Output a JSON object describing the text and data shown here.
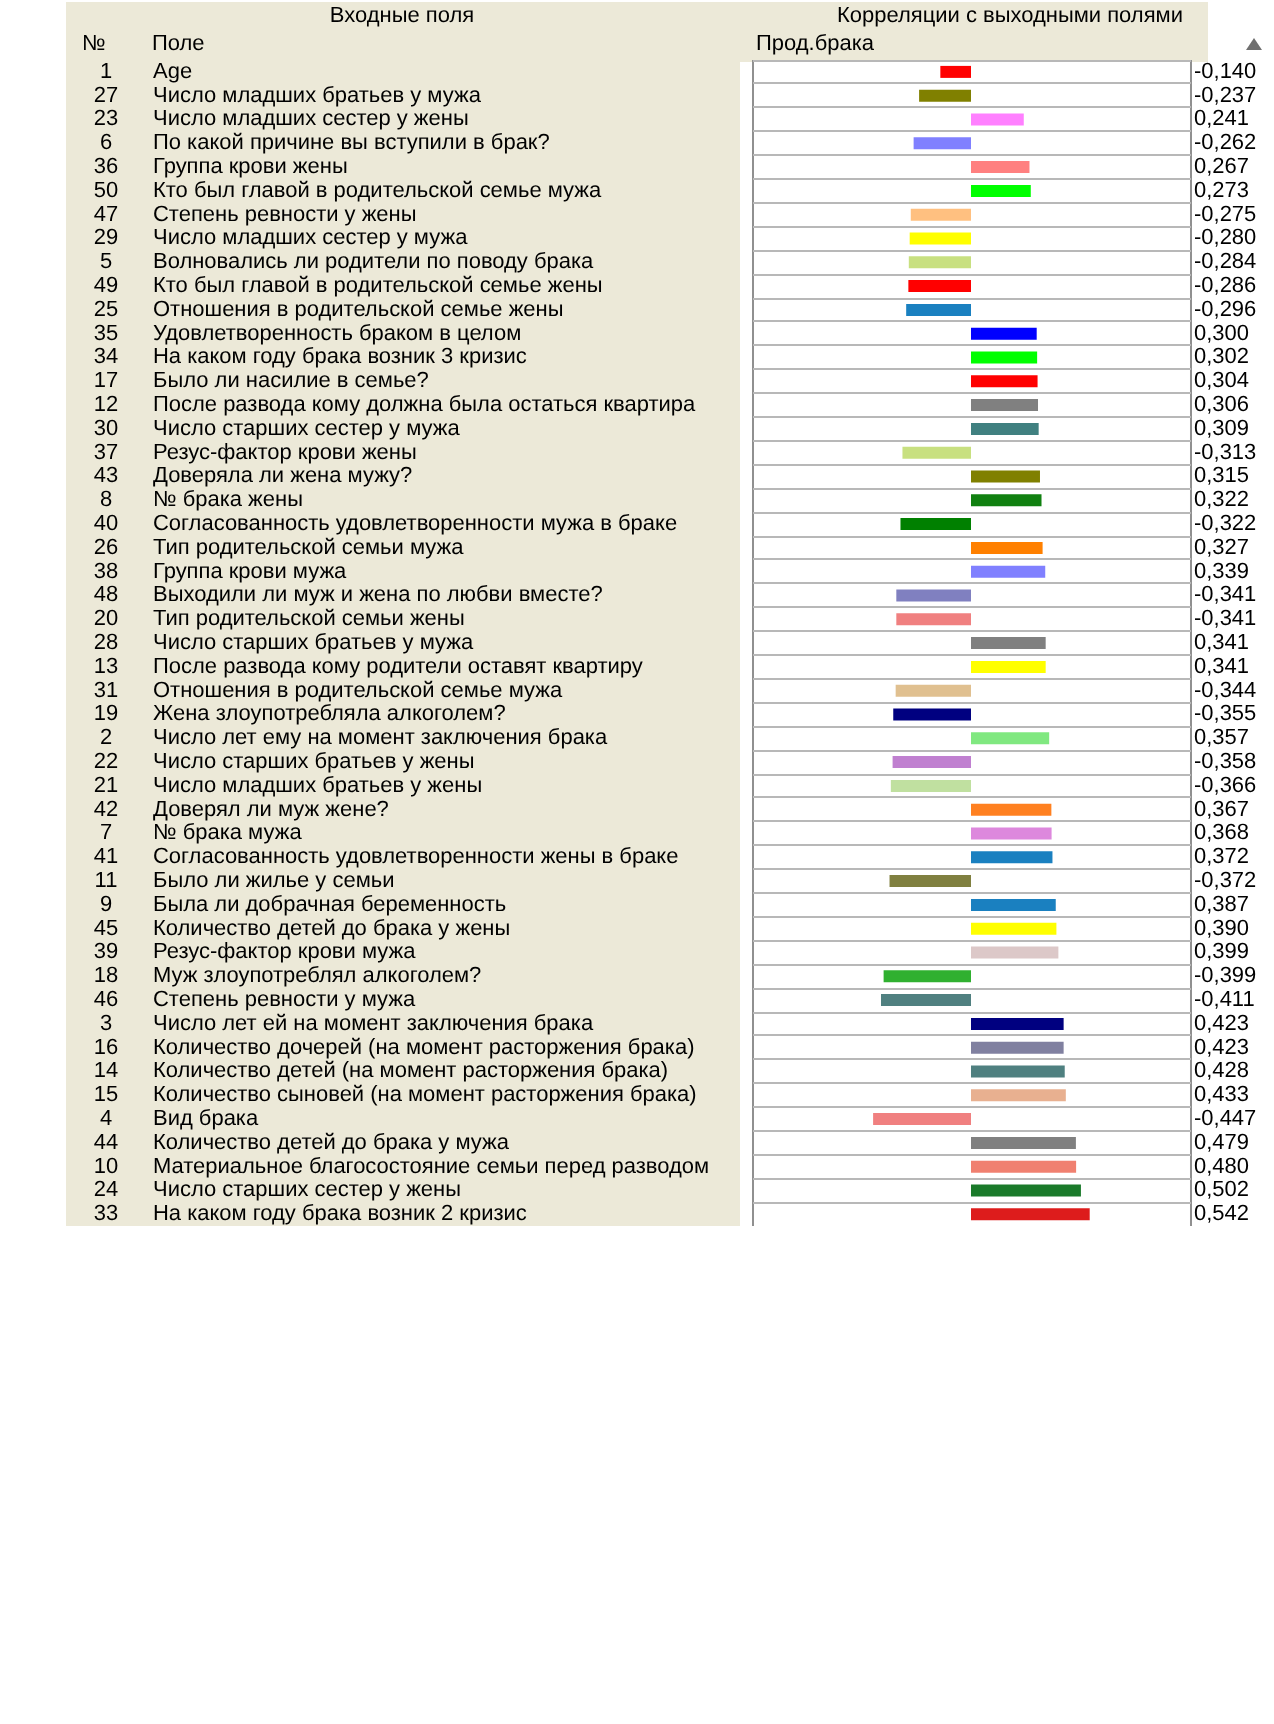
{
  "chart_data": {
    "type": "bar",
    "orientation": "horizontal",
    "title": "Корреляции с выходными полями",
    "ylabel": "Поле",
    "xlabel": "Прод.брака",
    "categories": [
      "Age",
      "Число младших братьев у мужа",
      "Число младших сестер у жены",
      "По какой причине вы вступили в брак?",
      "Группа крови жены",
      "Кто был главой в родительской семье мужа",
      "Степень ревности у жены",
      "Число младших сестер у мужа",
      "Волновались ли родители по поводу брака",
      "Кто был главой в родительской семье жены",
      "Отношения в родительской семье жены",
      "Удовлетворенность браком в целом",
      "На каком году брака возник 3 кризис",
      "Было ли насилие в семье?",
      "После развода кому должна была остаться квартира",
      "Число старших сестер у мужа",
      "Резус-фактор крови жены",
      "Доверяла ли жена мужу?",
      "№ брака жены",
      "Согласованность удовлетворенности мужа в браке",
      "Тип родительской семьи мужа",
      "Группа крови мужа",
      "Выходили ли муж и жена по любви вместе?",
      "Тип родительской семьи жены",
      "Число старших братьев у мужа",
      "После развода кому родители оставят квартиру",
      "Отношения в родительской семье мужа",
      "Жена злоупотребляла алкоголем?",
      "Число лет ему на момент заключения брака",
      "Число старших братьев у жены",
      "Число младших братьев у жены",
      "Доверял ли муж жене?",
      "№ брака мужа",
      "Согласованность удовлетворенности жены в браке",
      "Было ли жилье у семьи",
      "Была ли добрачная беременность",
      "Количество детей до брака у жены",
      "Резус-фактор крови мужа",
      "Муж злоупотреблял алкоголем?",
      "Степень ревности у мужа",
      "Число лет ей на момент заключения брака",
      "Количество дочерей (на момент расторжения брака)",
      "Количество детей (на момент расторжения брака)",
      "Количество сыновей (на момент расторжения брака)",
      "Вид брака",
      "Количество детей до брака у мужа",
      "Материальное благосостояние семьи перед разводом",
      "Число старших сестер у жены",
      "На каком году брака возник 2 кризис"
    ],
    "values": [
      -0.14,
      -0.237,
      0.241,
      -0.262,
      0.267,
      0.273,
      -0.275,
      -0.28,
      -0.284,
      -0.286,
      -0.296,
      0.3,
      0.302,
      0.304,
      0.306,
      0.309,
      -0.313,
      0.315,
      0.322,
      -0.322,
      0.327,
      0.339,
      -0.341,
      -0.341,
      0.341,
      0.341,
      -0.344,
      -0.355,
      0.357,
      -0.358,
      -0.366,
      0.367,
      0.368,
      0.372,
      -0.372,
      0.387,
      0.39,
      0.399,
      -0.399,
      -0.411,
      0.423,
      0.423,
      0.428,
      0.433,
      -0.447,
      0.479,
      0.48,
      0.502,
      0.542
    ],
    "colors": [
      "#ff0000",
      "#808000",
      "#ff80ff",
      "#8080ff",
      "#ff8080",
      "#00ff00",
      "#ffc080",
      "#ffff00",
      "#c8e080",
      "#ff0000",
      "#1a80c0",
      "#0000ff",
      "#00ff00",
      "#ff0000",
      "#808080",
      "#408080",
      "#c8e080",
      "#808000",
      "#108010",
      "#008000",
      "#ff8000",
      "#8080ff",
      "#8080c0",
      "#f08080",
      "#808080",
      "#ffff00",
      "#e0c090",
      "#000080",
      "#80e880",
      "#c080d0",
      "#c0e0a0",
      "#ff8020",
      "#dd88dd",
      "#1a80c0",
      "#808040",
      "#1a80c0",
      "#ffff00",
      "#dcc8c8",
      "#30b030",
      "#508080",
      "#000080",
      "#8080a0",
      "#4f8080",
      "#e8b090",
      "#f08080",
      "#808080",
      "#f08070",
      "#1a7a2a",
      "#dd1c1c"
    ],
    "xlim": [
      -1,
      1
    ],
    "grid": "y",
    "tick_labels": "y",
    "value_labels": [
      "-0,140",
      "-0,237",
      "0,241",
      "-0,262",
      "0,267",
      "0,273",
      "-0,275",
      "-0,280",
      "-0,284",
      "-0,286",
      "-0,296",
      "0,300",
      "0,302",
      "0,304",
      "0,306",
      "0,309",
      "-0,313",
      "0,315",
      "0,322",
      "-0,322",
      "0,327",
      "0,339",
      "-0,341",
      "-0,341",
      "0,341",
      "0,341",
      "-0,344",
      "-0,355",
      "0,357",
      "-0,358",
      "-0,366",
      "0,367",
      "0,368",
      "0,372",
      "-0,372",
      "0,387",
      "0,390",
      "0,399",
      "-0,399",
      "-0,411",
      "0,423",
      "0,423",
      "0,428",
      "0,433",
      "-0,447",
      "0,479",
      "0,480",
      "0,502",
      "0,542"
    ],
    "annotations": [
      "Входные поля",
      "№",
      "1",
      "27",
      "23",
      "6",
      "36",
      "50",
      "47",
      "29",
      "5",
      "49",
      "25",
      "35",
      "34",
      "17",
      "12",
      "30",
      "37",
      "43",
      "8",
      "40",
      "26",
      "38",
      "48",
      "20",
      "28",
      "13",
      "31",
      "19",
      "2",
      "22",
      "21",
      "42",
      "7",
      "41",
      "11",
      "9",
      "45",
      "39",
      "18",
      "46",
      "3",
      "16",
      "14",
      "15",
      "4",
      "44",
      "10",
      "24",
      "33"
    ]
  }
}
